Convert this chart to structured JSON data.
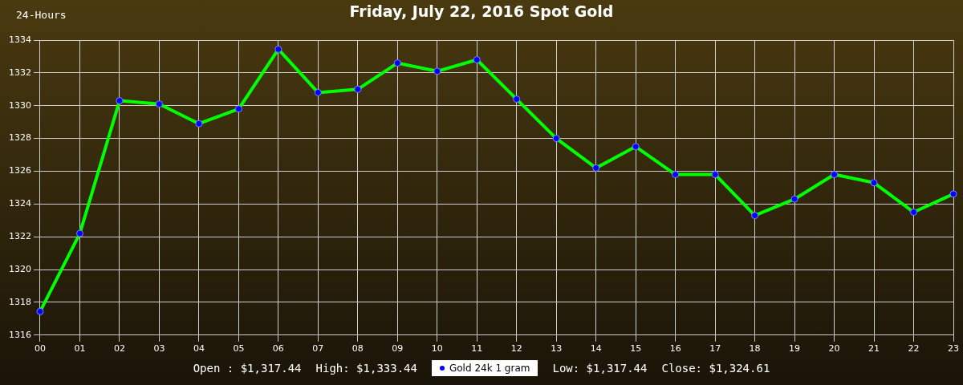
{
  "chart_data": {
    "type": "line",
    "title": "Friday, July 22, 2016 Spot Gold",
    "annotations": [
      "24-Hours",
      "Open : $1,317.44",
      "High: $1,333.44",
      "Low: $1,317.44",
      "Close: $1,324.61"
    ],
    "categories": [
      "00",
      "01",
      "02",
      "03",
      "04",
      "05",
      "06",
      "07",
      "08",
      "09",
      "10",
      "11",
      "12",
      "13",
      "14",
      "15",
      "16",
      "17",
      "18",
      "19",
      "20",
      "21",
      "22",
      "23"
    ],
    "series": [
      {
        "name": "Gold 24k 1 gram",
        "color": "#00ff00",
        "values": [
          1317.44,
          1322.2,
          1330.3,
          1330.1,
          1328.9,
          1329.8,
          1333.44,
          1330.8,
          1331.0,
          1332.6,
          1332.1,
          1332.8,
          1330.4,
          1328.0,
          1326.2,
          1327.5,
          1325.8,
          1325.8,
          1323.3,
          1324.3,
          1325.8,
          1325.3,
          1323.5,
          1324.61
        ]
      }
    ],
    "ylim": [
      1316,
      1334
    ],
    "yticks": [
      1316,
      1318,
      1320,
      1322,
      1324,
      1326,
      1328,
      1330,
      1332,
      1334
    ],
    "grid": true,
    "legend": "bottom",
    "marker": "circle",
    "line_style": "solid"
  }
}
